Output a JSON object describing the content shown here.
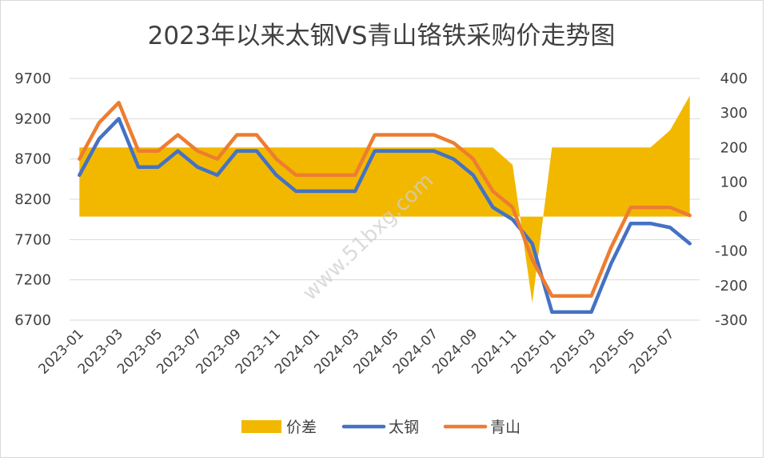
{
  "chart_data": {
    "type": "line",
    "title": "2023年以来太钢VS青山铬铁采购价走势图",
    "watermark": "www.51bxg.com",
    "x": [
      "2023-01",
      "2023-02",
      "2023-03",
      "2023-04",
      "2023-05",
      "2023-06",
      "2023-07",
      "2023-08",
      "2023-09",
      "2023-10",
      "2023-11",
      "2023-12",
      "2024-01",
      "2024-02",
      "2024-03",
      "2024-04",
      "2024-05",
      "2024-06",
      "2024-07",
      "2024-08",
      "2024-09",
      "2024-10",
      "2024-11",
      "2024-12",
      "2025-01",
      "2025-02",
      "2025-03",
      "2025-04",
      "2025-05",
      "2025-06",
      "2025-07",
      "2025-08"
    ],
    "x_tick_labels": [
      "2023-01",
      "2023-03",
      "2023-05",
      "2023-07",
      "2023-09",
      "2023-11",
      "2024-01",
      "2024-03",
      "2024-05",
      "2024-07",
      "2024-09",
      "2024-11",
      "2025-01",
      "2025-03",
      "2025-05",
      "2025-07"
    ],
    "y_left": {
      "ticks": [
        "9700",
        "9200",
        "8700",
        "8200",
        "7700",
        "7200",
        "6700"
      ],
      "ylim": [
        6700,
        9700
      ]
    },
    "y_right": {
      "ticks": [
        "400",
        "300",
        "200",
        "100",
        "0",
        "-100",
        "-200",
        "-300"
      ],
      "ylim": [
        -300,
        400
      ]
    },
    "grid": true,
    "legend_position": "bottom",
    "series": [
      {
        "name": "价差",
        "type": "area",
        "axis": "right",
        "color": "#f2b800",
        "values": [
          200,
          200,
          200,
          200,
          200,
          200,
          200,
          200,
          200,
          200,
          200,
          200,
          200,
          200,
          200,
          200,
          200,
          200,
          200,
          200,
          200,
          200,
          150,
          -250,
          200,
          200,
          200,
          200,
          200,
          200,
          250,
          350
        ]
      },
      {
        "name": "太钢",
        "type": "line",
        "axis": "left",
        "color": "#4472c4",
        "values": [
          8500,
          8950,
          9200,
          8600,
          8600,
          8800,
          8600,
          8500,
          8800,
          8800,
          8500,
          8300,
          8300,
          8300,
          8300,
          8800,
          8800,
          8800,
          8800,
          8700,
          8500,
          8100,
          7950,
          7650,
          6800,
          6800,
          6800,
          7400,
          7900,
          7900,
          7850,
          7650
        ]
      },
      {
        "name": "青山",
        "type": "line",
        "axis": "left",
        "color": "#ed7d31",
        "values": [
          8700,
          9150,
          9400,
          8800,
          8800,
          9000,
          8800,
          8700,
          9000,
          9000,
          8700,
          8500,
          8500,
          8500,
          8500,
          9000,
          9000,
          9000,
          9000,
          8900,
          8700,
          8300,
          8100,
          7450,
          7000,
          7000,
          7000,
          7600,
          8100,
          8100,
          8100,
          8000
        ]
      }
    ]
  }
}
